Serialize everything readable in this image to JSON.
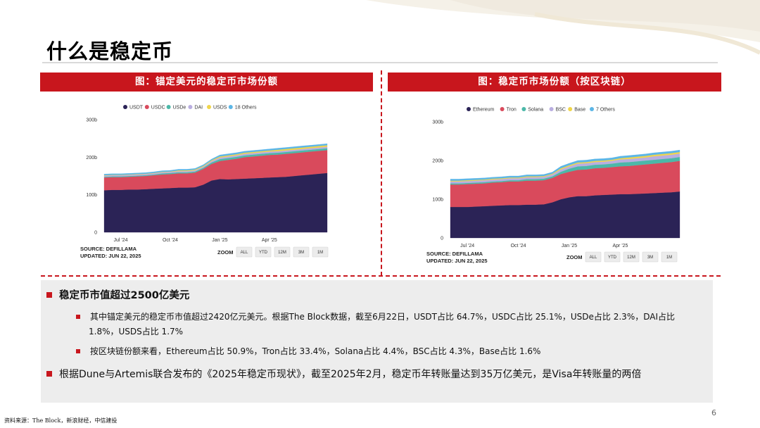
{
  "page": {
    "title": "什么是稳定币",
    "page_number": "6",
    "source_note": "资料来源：The Block，新浪财经，中信建投"
  },
  "left_panel": {
    "banner": "图：锚定美元的稳定币市场份额"
  },
  "right_panel": {
    "banner": "图：稳定币市场份额（按区块链）"
  },
  "bullets": {
    "b1": "稳定币市值超过2500亿美元",
    "b1a_line1": "其中锚定美元的稳定币市值超过2420亿元美元。根据The Block数据，截至6月22日，USDT占比 64.7%，USDC占比 25.1%，USDe占比 2.3%，DAI占比",
    "b1a_line2": "1.8%，USDS占比 1.7%",
    "b1b": "按区块链份额来看，Ethereum占比 50.9%，Tron占比 33.4%，Solana占比 4.4%，BSC占比 4.3%，Base占比 1.6%",
    "b2": "根据Dune与Artemis联合发布的《2025年稳定币现状》，截至2025年2月，稳定币年转账量达到35万亿美元，是Visa年转账量的两倍"
  },
  "colors": {
    "accent": "#c8161d",
    "navy": "#2b2356",
    "red": "#d94a5c",
    "teal": "#4cb8a8",
    "lavender": "#b9aee0",
    "yellow": "#f0d54a",
    "sky": "#5cb6e6"
  },
  "chart_data": [
    {
      "type": "area",
      "stacked": true,
      "title": "",
      "ylim": [
        0,
        300
      ],
      "yticks": [
        "0",
        "100b",
        "200b",
        "300b"
      ],
      "ytick_values": [
        0,
        100,
        200,
        300
      ],
      "xticks": [
        "Jul '24",
        "Oct '24",
        "Jan '25",
        "Apr '25"
      ],
      "xtick_positions": [
        2,
        8,
        14,
        20
      ],
      "x_count": 28,
      "series": [
        {
          "name": "USDT",
          "color": "#2b2356",
          "values": [
            112,
            113,
            113,
            114,
            114,
            115,
            116,
            117,
            118,
            119,
            119,
            120,
            127,
            138,
            142,
            141,
            142,
            143,
            144,
            145,
            146,
            147,
            148,
            150,
            152,
            154,
            156,
            158
          ]
        },
        {
          "name": "USDC",
          "color": "#d94a5c",
          "values": [
            34,
            34,
            34,
            34,
            35,
            35,
            36,
            37,
            37,
            38,
            38,
            39,
            42,
            44,
            48,
            52,
            54,
            57,
            58,
            59,
            60,
            60,
            61,
            61,
            61,
            61,
            61,
            61
          ]
        },
        {
          "name": "USDe",
          "color": "#4cb8a8",
          "values": [
            2,
            2,
            2,
            2,
            2,
            2,
            2,
            3,
            3,
            3,
            3,
            3,
            3,
            4,
            5,
            5,
            5,
            5,
            5,
            5,
            5,
            5,
            5,
            5,
            5,
            5,
            5,
            5
          ]
        },
        {
          "name": "DAI",
          "color": "#b9aee0",
          "values": [
            3,
            3,
            3,
            3,
            3,
            3,
            3,
            3,
            3,
            3,
            3,
            3,
            3,
            4,
            4,
            4,
            4,
            4,
            4,
            4,
            4,
            4,
            4,
            4,
            4,
            4,
            4,
            4
          ]
        },
        {
          "name": "USDS",
          "color": "#f0d54a",
          "values": [
            1,
            1,
            1,
            1,
            1,
            1,
            1,
            1,
            1,
            2,
            2,
            2,
            2,
            2,
            3,
            3,
            3,
            3,
            3,
            3,
            3,
            4,
            4,
            4,
            4,
            4,
            4,
            4
          ]
        },
        {
          "name": "18 Others",
          "color": "#5cb6e6",
          "values": [
            3,
            3,
            3,
            3,
            3,
            3,
            3,
            3,
            3,
            3,
            3,
            3,
            3,
            3,
            4,
            4,
            4,
            4,
            4,
            4,
            4,
            4,
            4,
            4,
            4,
            4,
            4,
            4
          ]
        }
      ],
      "source_label": "SOURCE: DEFILLAMA",
      "updated_label": "UPDATED: JUN 22, 2025",
      "zoom_label": "ZOOM",
      "zoom_buttons": [
        "ALL",
        "YTD",
        "12M",
        "3M",
        "1M"
      ]
    },
    {
      "type": "area",
      "stacked": true,
      "title": "",
      "ylim": [
        0,
        300
      ],
      "yticks": [
        "0",
        "100b",
        "200b",
        "300b"
      ],
      "ytick_values": [
        0,
        100,
        200,
        300
      ],
      "xticks": [
        "Jul '24",
        "Oct '24",
        "Jan '25",
        "Apr '25"
      ],
      "xtick_positions": [
        2,
        8,
        14,
        20
      ],
      "x_count": 28,
      "series": [
        {
          "name": "Ethereum",
          "color": "#2b2356",
          "values": [
            80,
            80,
            80,
            81,
            82,
            83,
            84,
            85,
            85,
            86,
            86,
            87,
            92,
            100,
            105,
            108,
            108,
            110,
            111,
            112,
            113,
            113,
            114,
            115,
            116,
            117,
            118,
            120
          ]
        },
        {
          "name": "Tron",
          "color": "#d94a5c",
          "values": [
            58,
            58,
            59,
            59,
            59,
            60,
            60,
            61,
            61,
            62,
            62,
            62,
            63,
            65,
            66,
            68,
            69,
            70,
            70,
            71,
            72,
            73,
            74,
            75,
            76,
            77,
            78,
            79
          ]
        },
        {
          "name": "Solana",
          "color": "#4cb8a8",
          "values": [
            3,
            3,
            3,
            3,
            3,
            3,
            3,
            3,
            3,
            4,
            4,
            4,
            4,
            6,
            8,
            9,
            9,
            9,
            9,
            9,
            10,
            10,
            10,
            10,
            10,
            10,
            10,
            10
          ]
        },
        {
          "name": "BSC",
          "color": "#b9aee0",
          "values": [
            5,
            5,
            5,
            5,
            5,
            5,
            5,
            5,
            5,
            5,
            5,
            5,
            5,
            6,
            6,
            7,
            7,
            7,
            7,
            7,
            8,
            8,
            8,
            8,
            9,
            9,
            9,
            9
          ]
        },
        {
          "name": "Base",
          "color": "#f0d54a",
          "values": [
            2,
            2,
            2,
            2,
            2,
            2,
            2,
            2,
            2,
            2,
            2,
            2,
            2,
            3,
            3,
            3,
            3,
            3,
            3,
            3,
            3,
            4,
            4,
            4,
            4,
            4,
            4,
            4
          ]
        },
        {
          "name": "7 Others",
          "color": "#5cb6e6",
          "values": [
            4,
            4,
            4,
            4,
            4,
            4,
            4,
            4,
            4,
            4,
            4,
            4,
            4,
            5,
            5,
            5,
            5,
            5,
            5,
            5,
            5,
            5,
            5,
            5,
            5,
            5,
            5,
            5
          ]
        }
      ],
      "source_label": "SOURCE: DEFILLAMA",
      "updated_label": "UPDATED: JUN 22, 2025",
      "zoom_label": "ZOOM",
      "zoom_buttons": [
        "ALL",
        "YTD",
        "12M",
        "3M",
        "1M"
      ]
    }
  ]
}
